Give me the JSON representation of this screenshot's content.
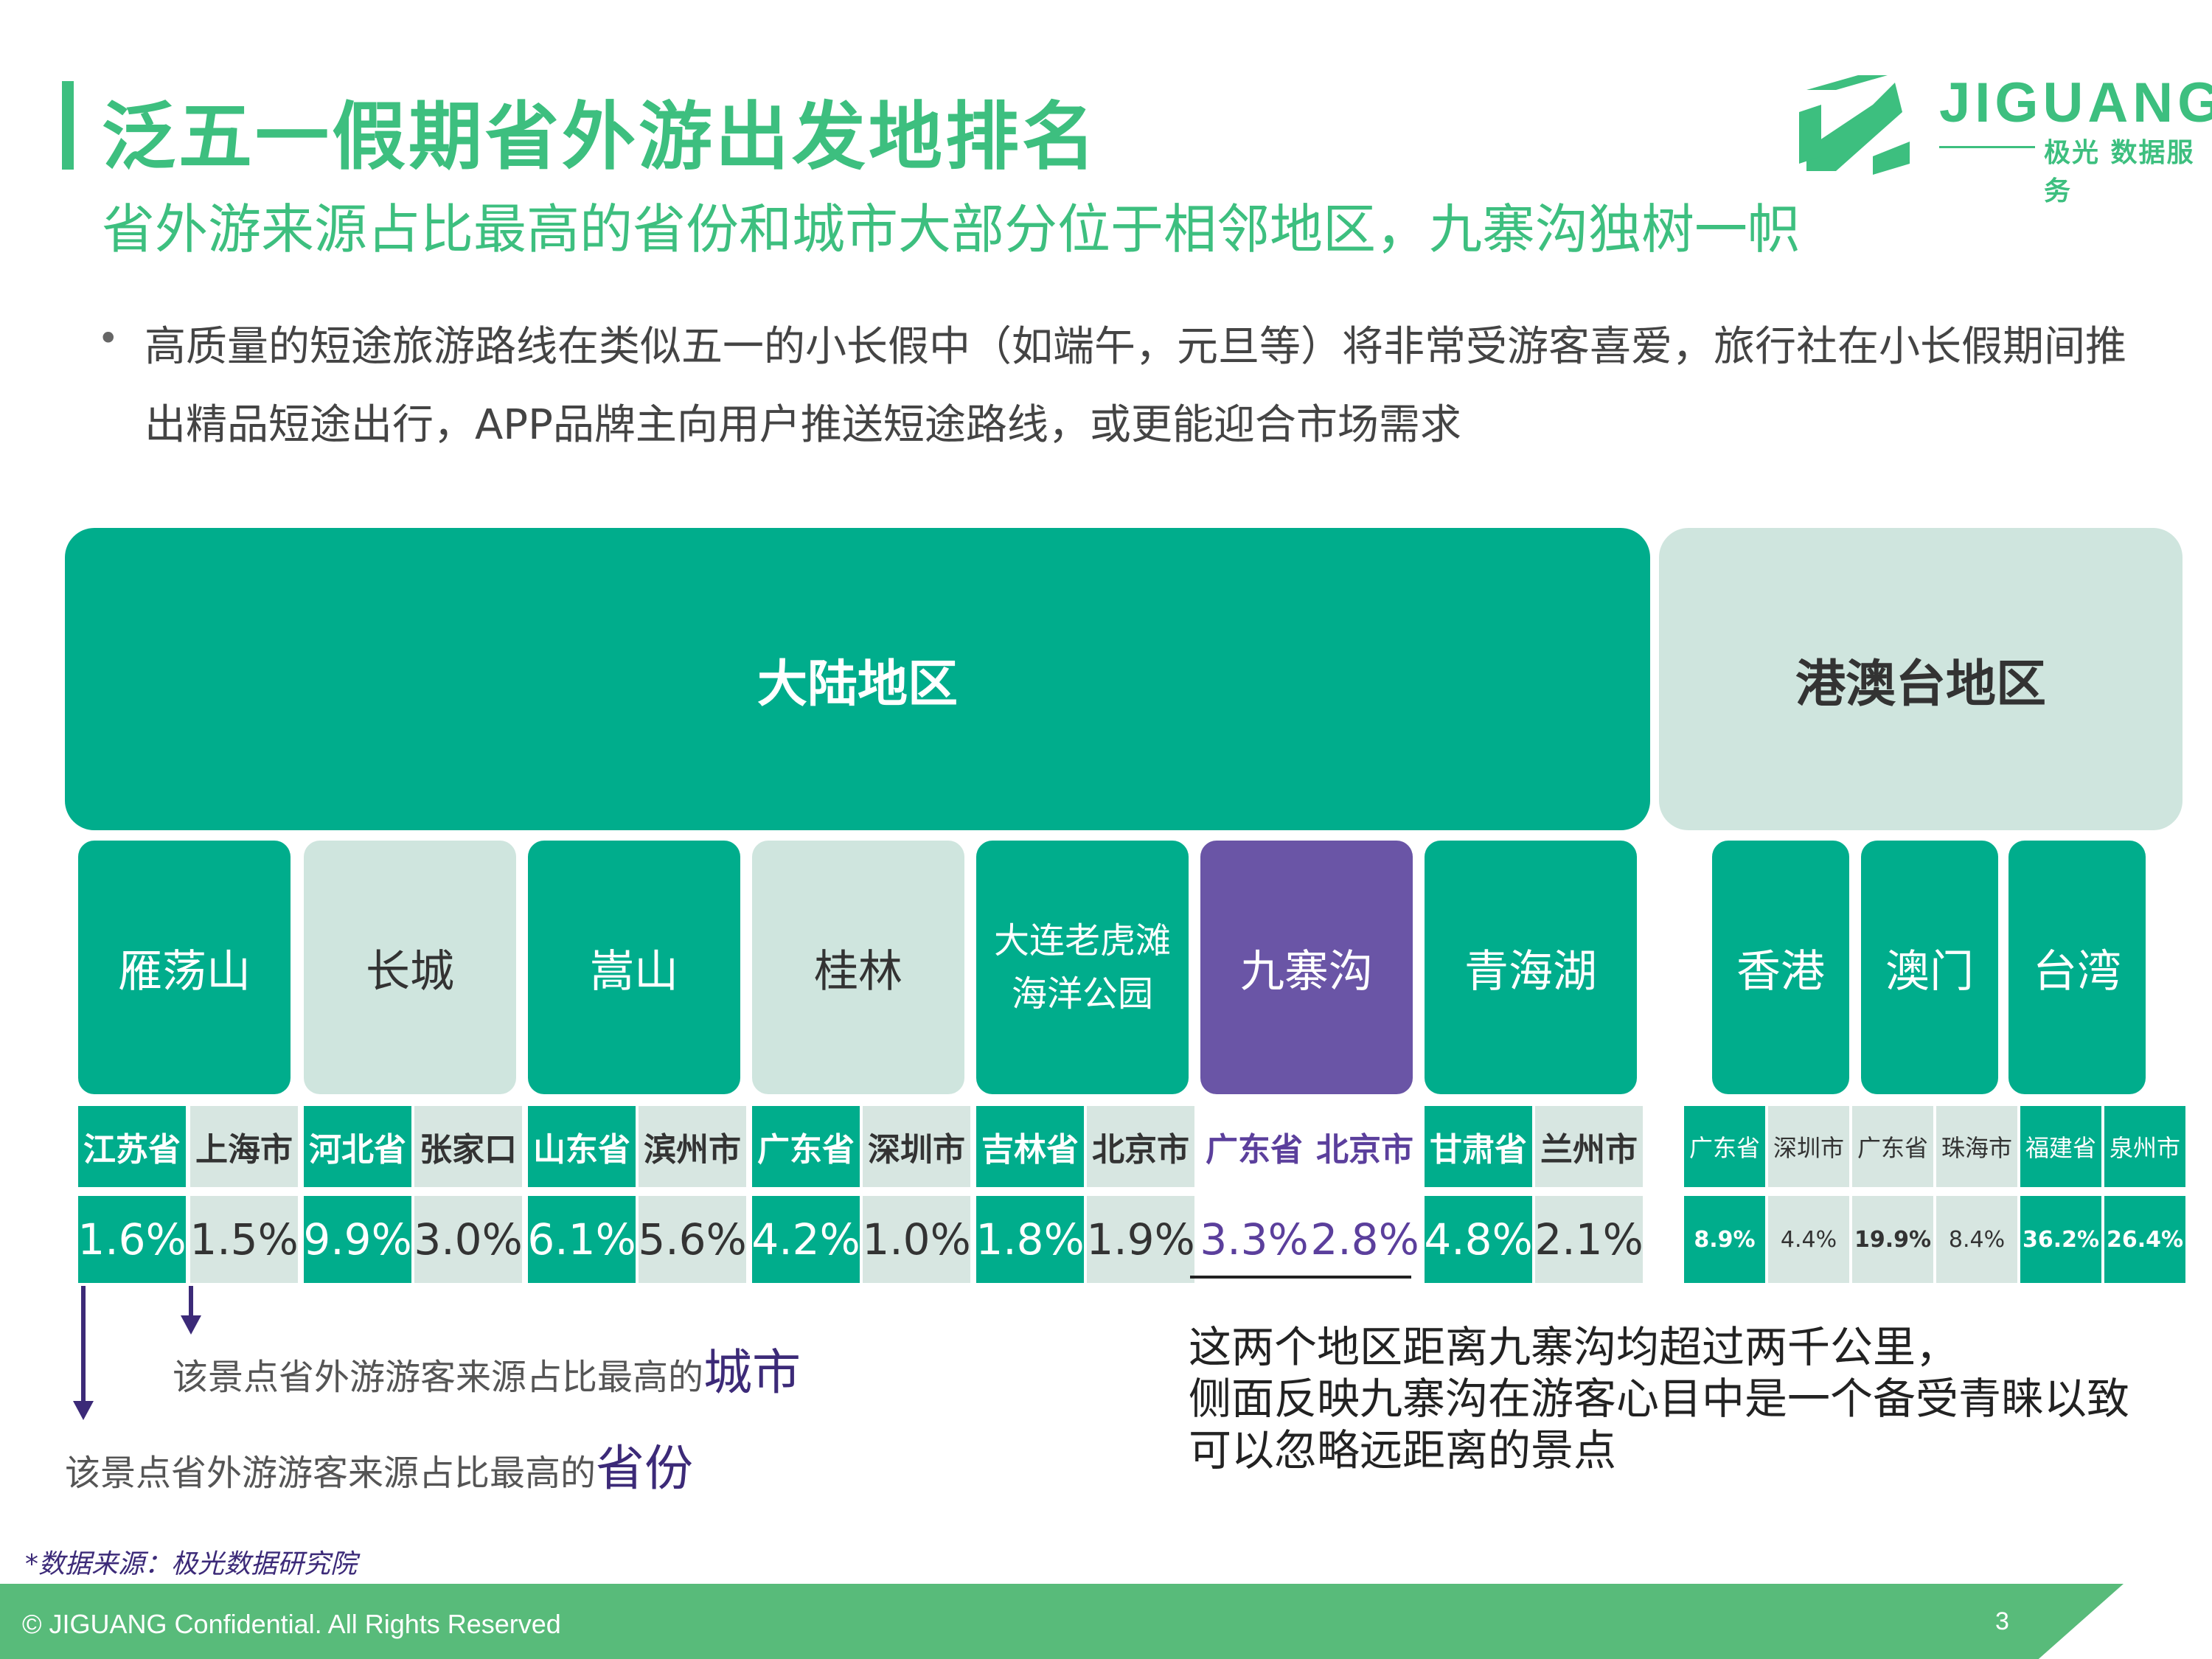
{
  "header": {
    "title": "泛五一假期省外游出发地排名",
    "subtitle": "省外游来源占比最高的省份和城市大部分位于相邻地区，九寨沟独树一帜"
  },
  "logo": {
    "name": "JIGUANG",
    "tagline": "极光 数据服务"
  },
  "bullet": "高质量的短途旅游路线在类似五一的小长假中（如端午，元旦等）将非常受游客喜爱，旅行社在小长假期间推出精品短途出行，APP品牌主向用户推送短途路线，或更能迎合市场需求",
  "regions": {
    "mainland": "大陆地区",
    "hmt": "港澳台地区"
  },
  "attractions": [
    {
      "name": "雁荡山",
      "province": "江苏省",
      "province_share": "1.6%",
      "city": "上海市",
      "city_share": "1.5%"
    },
    {
      "name": "长城",
      "province": "河北省",
      "province_share": "9.9%",
      "city": "张家口",
      "city_share": "3.0%"
    },
    {
      "name": "嵩山",
      "province": "山东省",
      "province_share": "6.1%",
      "city": "滨州市",
      "city_share": "5.6%"
    },
    {
      "name": "桂林",
      "province": "广东省",
      "province_share": "4.2%",
      "city": "深圳市",
      "city_share": "1.0%"
    },
    {
      "name": "大连老虎滩海洋公园",
      "province": "吉林省",
      "province_share": "1.8%",
      "city": "北京市",
      "city_share": "1.9%"
    },
    {
      "name": "九寨沟",
      "province": "广东省",
      "province_share": "3.3%",
      "city": "北京市",
      "city_share": "2.8%"
    },
    {
      "name": "青海湖",
      "province": "甘肃省",
      "province_share": "4.8%",
      "city": "兰州市",
      "city_share": "2.1%"
    }
  ],
  "hmt_attractions": [
    {
      "name": "香港",
      "province": "广东省",
      "province_share": "8.9%",
      "city": "深圳市",
      "city_share": "4.4%"
    },
    {
      "name": "澳门",
      "province": "广东省",
      "province_share": "19.9%",
      "city": "珠海市",
      "city_share": "8.4%"
    },
    {
      "name": "台湾",
      "province": "福建省",
      "province_share": "36.2%",
      "city": "泉州市",
      "city_share": "26.4%"
    }
  ],
  "notes": {
    "city_prefix": "该景点省外游游客来源占比最高的",
    "city_word": "城市",
    "province_prefix": "该景点省外游游客来源占比最高的",
    "province_word": "省份",
    "right_line1": "这两个地区距离九寨沟均超过两千公里，",
    "right_line2": "侧面反映九寨沟在游客心目中是一个备受青睐以致",
    "right_line3": "可以忽略远距离的景点"
  },
  "source": "*数据来源：极光数据研究院",
  "footer": {
    "text": "© JIGUANG Confidential. All Rights Reserved",
    "page": "3"
  },
  "colors": {
    "green": "#00ad8c",
    "light": "#cfe5de",
    "purple": "#6a55a6",
    "brand": "#3dbf7f"
  }
}
